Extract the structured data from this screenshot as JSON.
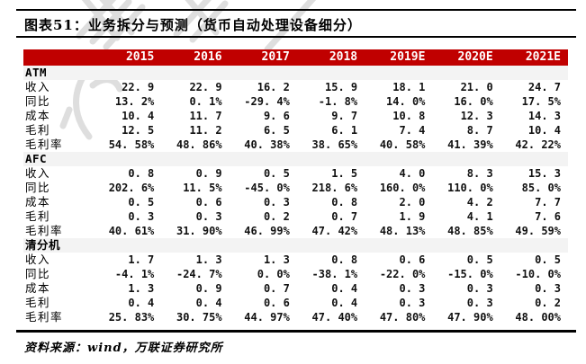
{
  "title": "图表51：业务拆分与预测（货币自动处理设备细分）",
  "source_note": "资料来源：wind，万联证券研究所",
  "colors": {
    "header_bg": "#c00000",
    "header_text": "#ffffff",
    "section_row_bg": "#f3f3f3",
    "rule": "#000000",
    "watermark": "#dedede"
  },
  "table": {
    "col_headers": [
      "",
      "2015",
      "2016",
      "2017",
      "2018",
      "2019E",
      "2020E",
      "2021E"
    ],
    "sections": [
      {
        "name": "ATM",
        "rows": [
          {
            "label": "收入",
            "values": [
              "22. 9",
              "22. 9",
              "16. 2",
              "15. 9",
              "18. 1",
              "21. 0",
              "24. 7"
            ]
          },
          {
            "label": "同比",
            "values": [
              "13. 2%",
              "0. 1%",
              "-29. 4%",
              "-1. 8%",
              "14. 0%",
              "16. 0%",
              "17. 5%"
            ]
          },
          {
            "label": "成本",
            "values": [
              "10. 4",
              "11. 7",
              "9. 6",
              "9. 7",
              "10. 8",
              "12. 3",
              "14. 3"
            ]
          },
          {
            "label": "毛利",
            "values": [
              "12. 5",
              "11. 2",
              "6. 5",
              "6. 1",
              "7. 4",
              "8. 7",
              "10. 4"
            ]
          },
          {
            "label": "毛利率",
            "values": [
              "54. 58%",
              "48. 86%",
              "40. 38%",
              "38. 65%",
              "40. 58%",
              "41. 39%",
              "42. 22%"
            ]
          }
        ]
      },
      {
        "name": "AFC",
        "rows": [
          {
            "label": "收入",
            "values": [
              "0. 8",
              "0. 9",
              "0. 5",
              "1. 5",
              "4. 0",
              "8. 3",
              "15. 3"
            ]
          },
          {
            "label": "同比",
            "values": [
              "202. 6%",
              "11. 5%",
              "-45. 0%",
              "218. 6%",
              "160. 0%",
              "110. 0%",
              "85. 0%"
            ]
          },
          {
            "label": "成本",
            "values": [
              "0. 5",
              "0. 6",
              "0. 3",
              "0. 8",
              "2. 0",
              "4. 2",
              "7. 7"
            ]
          },
          {
            "label": "毛利",
            "values": [
              "0. 3",
              "0. 3",
              "0. 2",
              "0. 7",
              "1. 9",
              "4. 1",
              "7. 6"
            ]
          },
          {
            "label": "毛利率",
            "values": [
              "40. 61%",
              "31. 90%",
              "46. 99%",
              "47. 42%",
              "48. 13%",
              "48. 85%",
              "49. 59%"
            ]
          }
        ]
      },
      {
        "name": "清分机",
        "rows": [
          {
            "label": "收入",
            "values": [
              "1. 7",
              "1. 3",
              "1. 3",
              "0. 8",
              "0. 6",
              "0. 5",
              "0. 5"
            ]
          },
          {
            "label": "同比",
            "values": [
              "-4. 1%",
              "-24. 7%",
              "0. 0%",
              "-38. 1%",
              "-22. 0%",
              "-15. 0%",
              "-10. 0%"
            ]
          },
          {
            "label": "成本",
            "values": [
              "1. 3",
              "0. 9",
              "0. 7",
              "0. 4",
              "0. 3",
              "0. 3",
              "0. 3"
            ]
          },
          {
            "label": "毛利",
            "values": [
              "0. 4",
              "0. 4",
              "0. 6",
              "0. 4",
              "0. 3",
              "0. 3",
              "0. 2"
            ]
          },
          {
            "label": "毛利率",
            "values": [
              "25. 83%",
              "30. 75%",
              "44. 97%",
              "47. 40%",
              "47. 80%",
              "47. 90%",
              "48. 00%"
            ]
          }
        ]
      }
    ]
  },
  "chart_data": {
    "type": "table",
    "title": "图表51：业务拆分与预测（货币自动处理设备细分）",
    "columns": [
      "2015",
      "2016",
      "2017",
      "2018",
      "2019E",
      "2020E",
      "2021E"
    ],
    "sections": [
      {
        "name": "ATM",
        "rows": [
          {
            "label": "收入",
            "values": [
              22.9,
              22.9,
              16.2,
              15.9,
              18.1,
              21.0,
              24.7
            ]
          },
          {
            "label": "同比",
            "values": [
              "13.2%",
              "0.1%",
              "-29.4%",
              "-1.8%",
              "14.0%",
              "16.0%",
              "17.5%"
            ]
          },
          {
            "label": "成本",
            "values": [
              10.4,
              11.7,
              9.6,
              9.7,
              10.8,
              12.3,
              14.3
            ]
          },
          {
            "label": "毛利",
            "values": [
              12.5,
              11.2,
              6.5,
              6.1,
              7.4,
              8.7,
              10.4
            ]
          },
          {
            "label": "毛利率",
            "values": [
              "54.58%",
              "48.86%",
              "40.38%",
              "38.65%",
              "40.58%",
              "41.39%",
              "42.22%"
            ]
          }
        ]
      },
      {
        "name": "AFC",
        "rows": [
          {
            "label": "收入",
            "values": [
              0.8,
              0.9,
              0.5,
              1.5,
              4.0,
              8.3,
              15.3
            ]
          },
          {
            "label": "同比",
            "values": [
              "202.6%",
              "11.5%",
              "-45.0%",
              "218.6%",
              "160.0%",
              "110.0%",
              "85.0%"
            ]
          },
          {
            "label": "成本",
            "values": [
              0.5,
              0.6,
              0.3,
              0.8,
              2.0,
              4.2,
              7.7
            ]
          },
          {
            "label": "毛利",
            "values": [
              0.3,
              0.3,
              0.2,
              0.7,
              1.9,
              4.1,
              7.6
            ]
          },
          {
            "label": "毛利率",
            "values": [
              "40.61%",
              "31.90%",
              "46.99%",
              "47.42%",
              "48.13%",
              "48.85%",
              "49.59%"
            ]
          }
        ]
      },
      {
        "name": "清分机",
        "rows": [
          {
            "label": "收入",
            "values": [
              1.7,
              1.3,
              1.3,
              0.8,
              0.6,
              0.5,
              0.5
            ]
          },
          {
            "label": "同比",
            "values": [
              "-4.1%",
              "-24.7%",
              "0.0%",
              "-38.1%",
              "-22.0%",
              "-15.0%",
              "-10.0%"
            ]
          },
          {
            "label": "成本",
            "values": [
              1.3,
              0.9,
              0.7,
              0.4,
              0.3,
              0.3,
              0.3
            ]
          },
          {
            "label": "毛利",
            "values": [
              0.4,
              0.4,
              0.6,
              0.4,
              0.3,
              0.3,
              0.2
            ]
          },
          {
            "label": "毛利率",
            "values": [
              "25.83%",
              "30.75%",
              "44.97%",
              "47.40%",
              "47.80%",
              "47.90%",
              "48.00%"
            ]
          }
        ]
      }
    ],
    "source": "wind，万联证券研究所"
  }
}
